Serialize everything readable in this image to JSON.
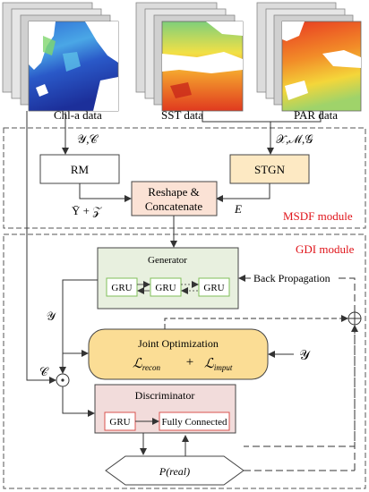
{
  "colors": {
    "rm_fill": "#ffffff",
    "stgn_fill": "#fde9c3",
    "concat_fill": "#fbe2d5",
    "generator_fill": "#e8f0df",
    "joint_fill": "#fbdd95",
    "discriminator_fill": "#f2dcdb",
    "gru_border": "#7fbf5a",
    "disc_inner_border": "#d9534f",
    "module_label": "#e0151b",
    "dash_border": "#555555"
  },
  "data_panels": {
    "chl_label": "Chl-a data",
    "sst_label": "SST data",
    "par_label": "PAR data"
  },
  "msdf": {
    "label": "MSDF module",
    "rm": "RM",
    "stgn": "STGN",
    "concat_line1": "Reshape &",
    "concat_line2": "Concatenate",
    "in_left": "𝒴,𝒞",
    "in_right": "𝒳,ℳ,𝒢",
    "out_left": "Ȳ + 𝒵",
    "out_right": "E"
  },
  "gdi": {
    "label": "GDI module",
    "generator": "Generator",
    "gru": "GRU",
    "back_prop": "Back Propagation",
    "y_left": "𝒴",
    "c_left": "𝒞",
    "odot": "⊙",
    "oplus": "⊕",
    "joint_title": "Joint Optimization",
    "loss_recon": "ℒ",
    "loss_recon_sub": "recon",
    "plus": "+",
    "loss_imput": "ℒ",
    "loss_imput_sub": "imput",
    "y_right": "𝒴",
    "discriminator": "Discriminator",
    "fully_connected": "Fully Connected",
    "p_real": "P(real)"
  }
}
